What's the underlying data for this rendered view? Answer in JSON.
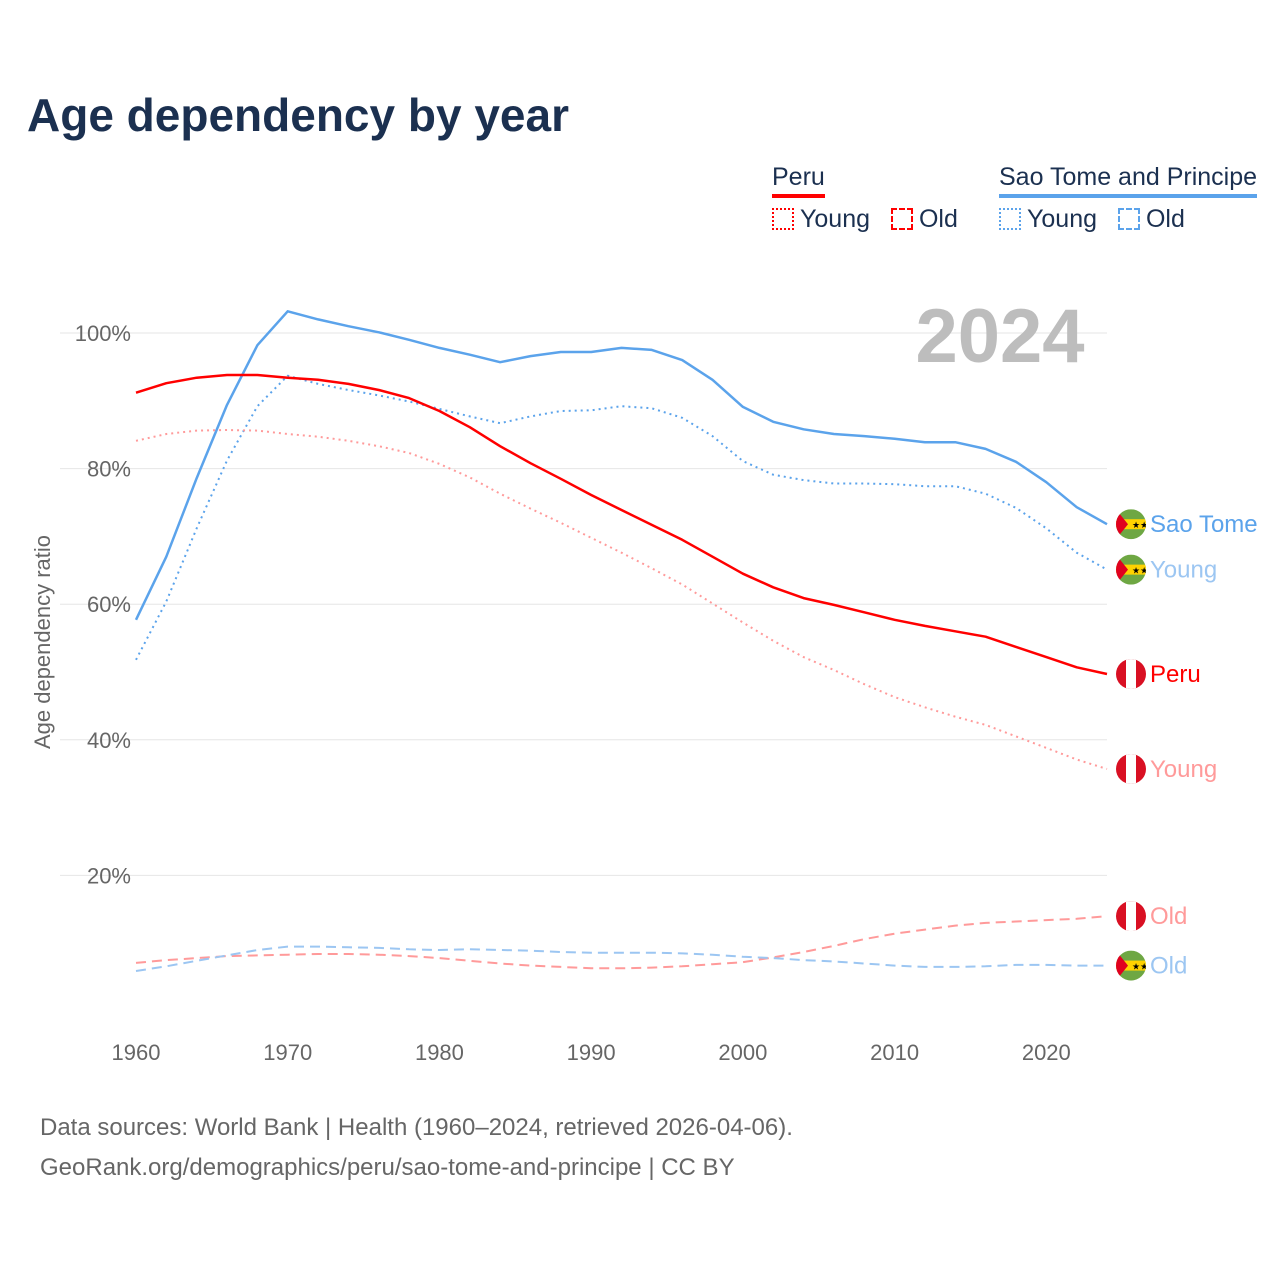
{
  "title": "Age dependency by year",
  "legend": {
    "groups": [
      {
        "name": "Peru",
        "color": "#ff0000",
        "items": [
          "Young",
          "Old"
        ]
      },
      {
        "name": "Sao Tome and Principe",
        "color": "#5ba3eb",
        "items": [
          "Young",
          "Old"
        ]
      }
    ]
  },
  "year_watermark": "2024",
  "footer": {
    "line1": "Data sources: World Bank | Health (1960–2024, retrieved 2026-04-06).",
    "line2": "GeoRank.org/demographics/peru/sao-tome-and-principe | CC BY"
  },
  "chart_data": {
    "type": "line",
    "title": "Age dependency by year",
    "xlabel": "",
    "ylabel": "Age dependency ratio",
    "xlim": [
      1960,
      2024
    ],
    "ylim": [
      0,
      110
    ],
    "x_ticks": [
      "1960",
      "1970",
      "1980",
      "1990",
      "2000",
      "2010",
      "2020"
    ],
    "y_ticks": [
      "20%",
      "40%",
      "60%",
      "80%",
      "100%"
    ],
    "y_tick_values": [
      20,
      40,
      60,
      80,
      100
    ],
    "grid": true,
    "x": [
      1960,
      1962,
      1964,
      1966,
      1968,
      1970,
      1972,
      1974,
      1976,
      1978,
      1980,
      1982,
      1984,
      1986,
      1988,
      1990,
      1992,
      1994,
      1996,
      1998,
      2000,
      2002,
      2004,
      2006,
      2008,
      2010,
      2012,
      2014,
      2016,
      2018,
      2020,
      2022,
      2024
    ],
    "series": [
      {
        "name": "Sao Tome",
        "end_label": "Sao Tome",
        "country": "stp",
        "style": "solid",
        "color": "#5ba3eb",
        "values": [
          57.7,
          67,
          78.6,
          89.4,
          98.2,
          103.2,
          102,
          101,
          100.1,
          99,
          97.8,
          96.8,
          95.7,
          96.6,
          97.2,
          97.2,
          97.8,
          97.5,
          96,
          93.1,
          89.1,
          86.9,
          85.8,
          85.1,
          84.8,
          84.4,
          83.9,
          83.9,
          82.9,
          81,
          78,
          74.3,
          71.8
        ]
      },
      {
        "name": "Sao Tome Young",
        "end_label": "Young",
        "country": "stp",
        "style": "dotted",
        "color": "#5ba3eb",
        "label_color": "#9cc6f2",
        "values": [
          51.8,
          60.4,
          71.2,
          81.2,
          89.2,
          93.7,
          92.5,
          91.6,
          90.8,
          89.9,
          88.8,
          87.7,
          86.7,
          87.7,
          88.5,
          88.6,
          89.2,
          88.9,
          87.5,
          84.8,
          81.1,
          79.1,
          78.3,
          77.8,
          77.8,
          77.7,
          77.4,
          77.4,
          76.3,
          74.2,
          71.2,
          67.6,
          65.1
        ]
      },
      {
        "name": "Peru",
        "end_label": "Peru",
        "country": "peru",
        "style": "solid",
        "color": "#ff0000",
        "values": [
          91.2,
          92.6,
          93.4,
          93.8,
          93.8,
          93.4,
          93.1,
          92.5,
          91.6,
          90.4,
          88.5,
          86.1,
          83.3,
          80.8,
          78.5,
          76.1,
          73.9,
          71.7,
          69.5,
          67,
          64.5,
          62.5,
          60.9,
          59.9,
          58.8,
          57.7,
          56.8,
          56,
          55.2,
          53.7,
          52.2,
          50.7,
          49.7
        ]
      },
      {
        "name": "Peru Young",
        "end_label": "Young",
        "country": "peru",
        "style": "dotted",
        "color": "#ff9a9a",
        "label_color": "#ff9a9a",
        "values": [
          84.1,
          85.1,
          85.6,
          85.7,
          85.6,
          85.1,
          84.7,
          84.1,
          83.3,
          82.3,
          80.7,
          78.7,
          76.3,
          74.1,
          72,
          69.8,
          67.6,
          65.3,
          62.9,
          60.1,
          57.3,
          54.6,
          52.2,
          50.3,
          48.2,
          46.3,
          44.8,
          43.4,
          42.2,
          40.5,
          38.8,
          37.1,
          35.7
        ]
      },
      {
        "name": "Peru Old",
        "end_label": "Old",
        "country": "peru",
        "style": "dashed",
        "color": "#ff9a9a",
        "label_color": "#ff9a9a",
        "values": [
          7.1,
          7.5,
          7.8,
          8.1,
          8.2,
          8.3,
          8.4,
          8.4,
          8.3,
          8.1,
          7.8,
          7.4,
          7,
          6.7,
          6.5,
          6.3,
          6.3,
          6.4,
          6.6,
          6.9,
          7.2,
          7.9,
          8.7,
          9.6,
          10.6,
          11.4,
          12,
          12.6,
          13,
          13.2,
          13.4,
          13.6,
          14
        ]
      },
      {
        "name": "Sao Tome Old",
        "end_label": "Old",
        "country": "stp",
        "style": "dashed",
        "color": "#9cc6f2",
        "label_color": "#9cc6f2",
        "values": [
          5.9,
          6.6,
          7.4,
          8.2,
          9,
          9.5,
          9.5,
          9.4,
          9.3,
          9.1,
          9,
          9.1,
          9,
          8.9,
          8.7,
          8.6,
          8.6,
          8.6,
          8.5,
          8.3,
          8,
          7.8,
          7.5,
          7.3,
          7,
          6.7,
          6.5,
          6.5,
          6.6,
          6.8,
          6.8,
          6.7,
          6.7
        ]
      }
    ]
  }
}
